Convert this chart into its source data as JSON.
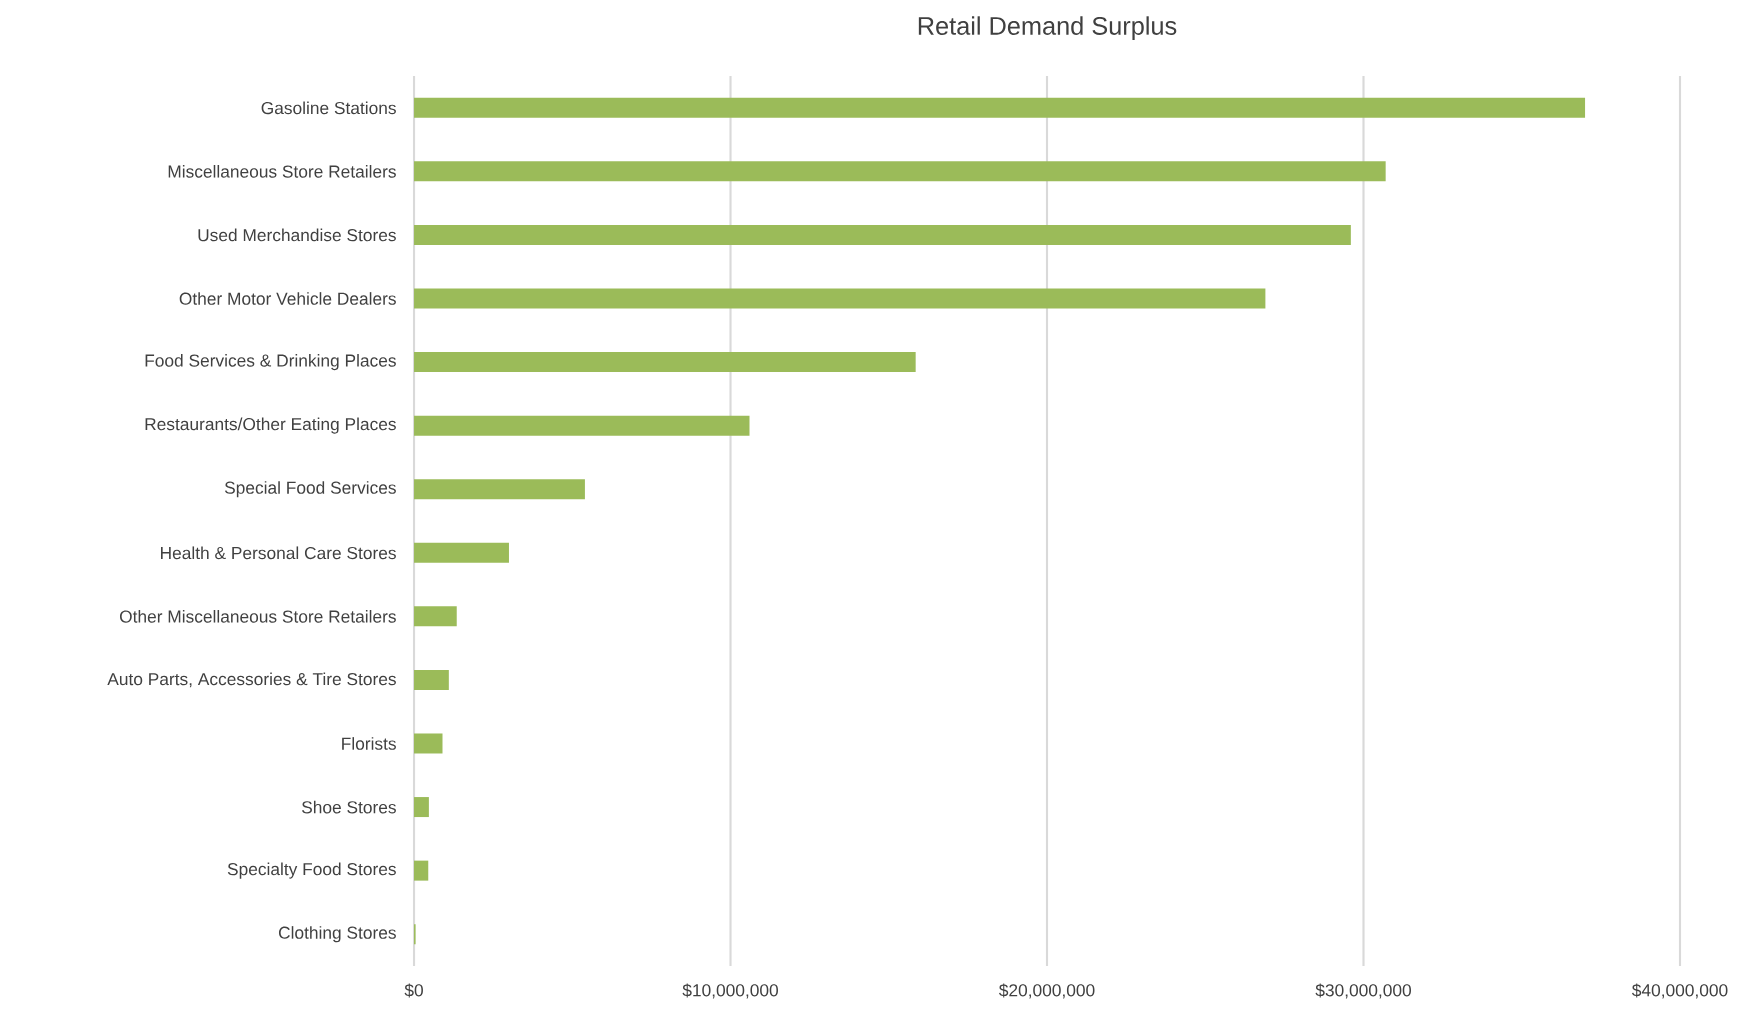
{
  "chart_data": {
    "type": "bar",
    "orientation": "horizontal",
    "title": "Retail Demand Surplus",
    "categories": [
      "Gasoline Stations",
      "Miscellaneous Store Retailers",
      "Used Merchandise Stores",
      "Other Motor Vehicle Dealers",
      "Food Services & Drinking Places",
      "Restaurants/Other Eating Places",
      "Special Food Services",
      "Health & Personal Care Stores",
      "Other Miscellaneous Store Retailers",
      "Auto Parts, Accessories & Tire Stores",
      "Florists",
      "Shoe Stores",
      "Specialty Food Stores",
      "Clothing Stores"
    ],
    "values": [
      37000000,
      30700000,
      29600000,
      26900000,
      15850000,
      10600000,
      5400000,
      3000000,
      1350000,
      1100000,
      900000,
      470000,
      450000,
      50000
    ],
    "color": "#9bbb59",
    "xlim": [
      0,
      40000000
    ],
    "xticks": [
      {
        "value": 0,
        "label": "$0"
      },
      {
        "value": 10000000,
        "label": "$10,000,000"
      },
      {
        "value": 20000000,
        "label": "$20,000,000"
      },
      {
        "value": 30000000,
        "label": "$30,000,000"
      },
      {
        "value": 40000000,
        "label": "$40,000,000"
      }
    ],
    "grid": "x"
  }
}
